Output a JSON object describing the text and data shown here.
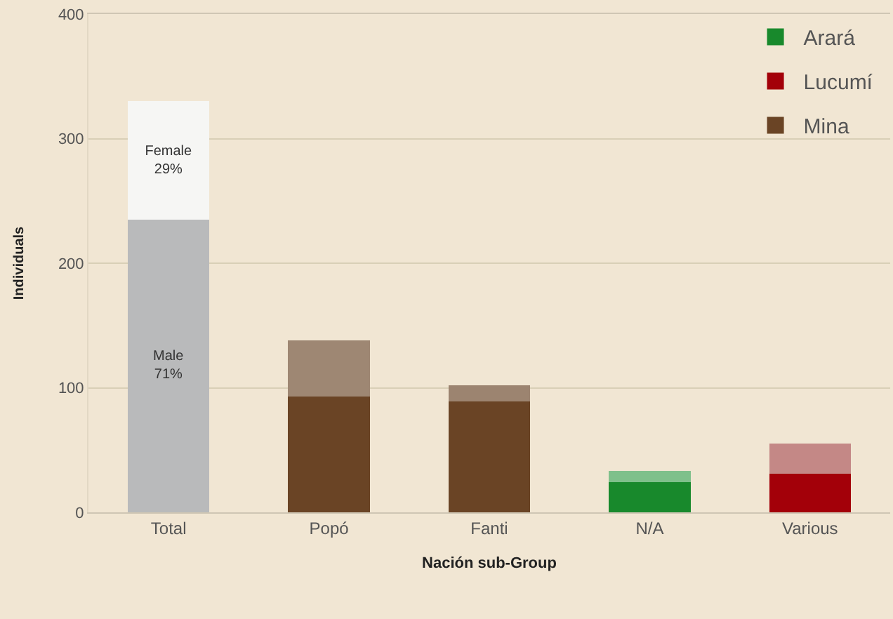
{
  "chart_data": {
    "type": "bar",
    "stacked": true,
    "categories": [
      "Total",
      "Popó",
      "Fanti",
      "N/A",
      "Various"
    ],
    "xlabel": "Nación sub-Group",
    "ylabel": "Individuals",
    "ylim": [
      0,
      400
    ],
    "yticks": [
      0,
      100,
      200,
      300,
      400
    ],
    "grid": "y",
    "legend": "top right",
    "series": [
      {
        "color": "#b9babb",
        "values": [
          235,
          null,
          null,
          null,
          null
        ],
        "value_labels": [
          "Male\n71%",
          null,
          null,
          null,
          null
        ]
      },
      {
        "name": "Arará",
        "color": "#18892c",
        "values": [
          null,
          null,
          null,
          24,
          null
        ]
      },
      {
        "name": "Lucumí",
        "color": "#a30009",
        "values": [
          null,
          null,
          null,
          null,
          31
        ]
      },
      {
        "name": "Mina",
        "color": "#6a4425",
        "values": [
          null,
          93,
          89,
          null,
          null
        ]
      },
      {
        "colors": [
          "#f6f6f4",
          "#9e8773",
          "#9c8470",
          "#7fc08b",
          "#c48886"
        ],
        "values": [
          95,
          45,
          13,
          9,
          24
        ],
        "value_labels": [
          "Female\n29%",
          null,
          null,
          null,
          null
        ]
      }
    ]
  }
}
